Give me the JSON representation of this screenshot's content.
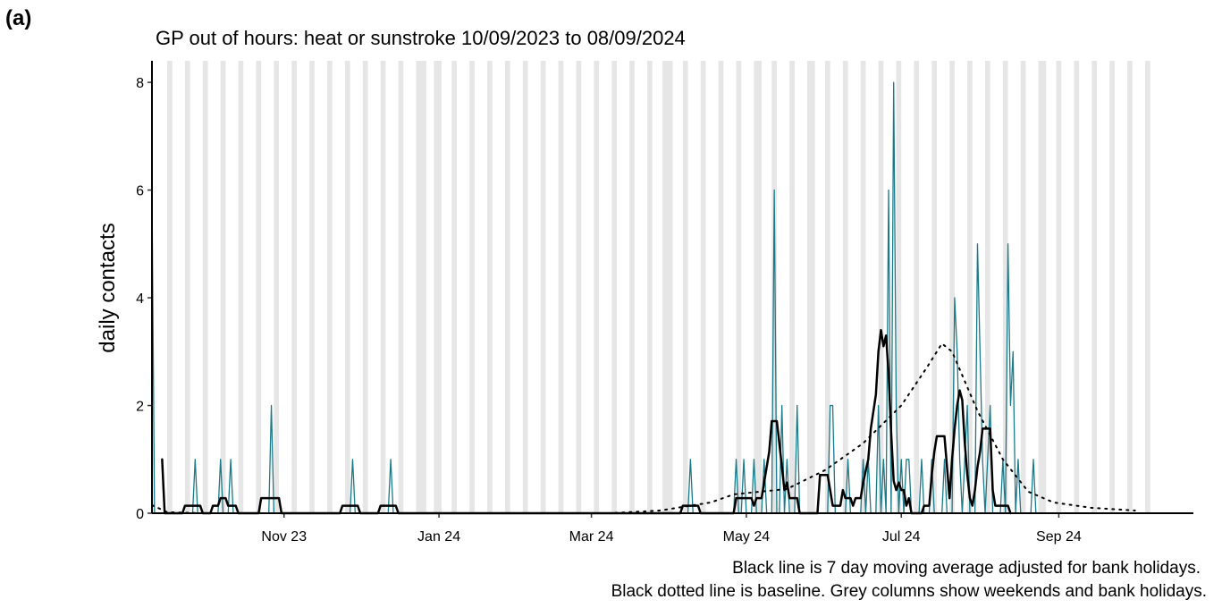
{
  "chart_data": {
    "type": "line",
    "panel_label": "(a)",
    "title": "GP out of hours: heat or sunstroke 10/09/2023 to 08/09/2024",
    "y_label": "daily contacts",
    "notes": [
      "Black line is 7 day moving average adjusted for bank holidays.",
      "Black dotted line is baseline. Grey columns show weekends and bank holidays."
    ],
    "xlim": [
      0,
      410
    ],
    "ylim": [
      0,
      8.4
    ],
    "yticks": [
      0,
      2,
      4,
      6,
      8
    ],
    "xticks": [
      {
        "value": 52,
        "label": "Nov 23"
      },
      {
        "value": 113,
        "label": "Jan 24"
      },
      {
        "value": 173,
        "label": "Mar 24"
      },
      {
        "value": 234,
        "label": "May 24"
      },
      {
        "value": 295,
        "label": "Jul 24"
      },
      {
        "value": 357,
        "label": "Sep 24"
      }
    ],
    "shade_color": "#e6e6e6",
    "shaded": [
      [
        6,
        8
      ],
      [
        13,
        15
      ],
      [
        20,
        22
      ],
      [
        27,
        29
      ],
      [
        34,
        36
      ],
      [
        41,
        43
      ],
      [
        48,
        50
      ],
      [
        55,
        57
      ],
      [
        62,
        64
      ],
      [
        69,
        71
      ],
      [
        76,
        78
      ],
      [
        83,
        85
      ],
      [
        90,
        92
      ],
      [
        97,
        99
      ],
      [
        104,
        108
      ],
      [
        111,
        114
      ],
      [
        118,
        120
      ],
      [
        125,
        127
      ],
      [
        132,
        134
      ],
      [
        139,
        141
      ],
      [
        146,
        148
      ],
      [
        153,
        155
      ],
      [
        160,
        162
      ],
      [
        167,
        169
      ],
      [
        174,
        176
      ],
      [
        181,
        183
      ],
      [
        188,
        190
      ],
      [
        195,
        197
      ],
      [
        201,
        205
      ],
      [
        209,
        211
      ],
      [
        216,
        218
      ],
      [
        223,
        225
      ],
      [
        230,
        232
      ],
      [
        237,
        240
      ],
      [
        244,
        246
      ],
      [
        251,
        253
      ],
      [
        258,
        261
      ],
      [
        265,
        267
      ],
      [
        272,
        274
      ],
      [
        279,
        281
      ],
      [
        286,
        288
      ],
      [
        293,
        295
      ],
      [
        300,
        302
      ],
      [
        307,
        309
      ],
      [
        314,
        316
      ],
      [
        321,
        323
      ],
      [
        328,
        330
      ],
      [
        335,
        337
      ],
      [
        342,
        344
      ],
      [
        349,
        352
      ],
      [
        356,
        358
      ],
      [
        363,
        365
      ],
      [
        370,
        372
      ],
      [
        377,
        379
      ],
      [
        384,
        386
      ],
      [
        391,
        393
      ]
    ],
    "series": [
      {
        "color": "#1b7a8a",
        "width": 1.3,
        "dash": "none",
        "x": [
          0,
          1,
          16,
          17,
          18,
          26,
          27,
          28,
          30,
          31,
          32,
          46,
          47,
          48,
          78,
          79,
          80,
          93,
          94,
          95,
          211,
          212,
          213,
          229,
          230,
          231,
          232,
          233,
          234,
          236,
          237,
          238,
          240,
          241,
          242,
          244,
          245,
          246,
          247,
          248,
          249,
          250,
          251,
          253,
          254,
          255,
          266,
          267,
          268,
          269,
          273,
          274,
          275,
          279,
          280,
          281,
          282,
          283,
          285,
          286,
          287,
          288,
          289,
          290,
          291,
          292,
          293,
          294,
          295,
          296,
          297,
          298,
          299,
          302,
          303,
          304,
          306,
          307,
          308,
          311,
          312,
          313,
          315,
          316,
          317,
          318,
          319,
          320,
          321,
          322,
          324,
          325,
          326,
          327,
          328,
          329,
          330,
          331,
          334,
          335,
          336,
          337,
          338,
          339,
          340,
          341,
          342,
          346,
          347,
          348,
          364
        ],
        "values": [
          6,
          0,
          0,
          1,
          0,
          0,
          1,
          0,
          0,
          1,
          0,
          0,
          2,
          0,
          0,
          1,
          0,
          0,
          1,
          0,
          0,
          1,
          0,
          0,
          1,
          0,
          0,
          1,
          0,
          0,
          1,
          0,
          0,
          1,
          0,
          0,
          6,
          0,
          0,
          2,
          0,
          1,
          0,
          0,
          2,
          0,
          0,
          2,
          2,
          0,
          0,
          1,
          0,
          0,
          1,
          0,
          1,
          0,
          0,
          2,
          0,
          1,
          0,
          6,
          0,
          8,
          2,
          0,
          1,
          0,
          1,
          1,
          0,
          0,
          1,
          0,
          0,
          1,
          0,
          0,
          1,
          0,
          0,
          4,
          3,
          1,
          0,
          1,
          2,
          0,
          0,
          5,
          3,
          1,
          0,
          1,
          2,
          0,
          0,
          1,
          0,
          5,
          2,
          3,
          0,
          1,
          0,
          0,
          1,
          0,
          0
        ]
      },
      {
        "color": "#000000",
        "width": 2.5,
        "dash": "none",
        "x": [
          4,
          5,
          12,
          13,
          19,
          20,
          23,
          24,
          26,
          27,
          29,
          30,
          33,
          34,
          42,
          43,
          50,
          51,
          74,
          75,
          81,
          82,
          89,
          90,
          96,
          97,
          208,
          209,
          215,
          216,
          229,
          230,
          236,
          237,
          238,
          240,
          241,
          243,
          244,
          246,
          247,
          248,
          249,
          250,
          251,
          254,
          255,
          262,
          263,
          266,
          267,
          268,
          271,
          272,
          273,
          275,
          276,
          277,
          279,
          280,
          282,
          283,
          285,
          286,
          287,
          288,
          289,
          290,
          291,
          292,
          293,
          294,
          295,
          296,
          297,
          298,
          299,
          303,
          304,
          306,
          307,
          308,
          309,
          312,
          313,
          314,
          315,
          316,
          317,
          318,
          319,
          320,
          321,
          322,
          323,
          324,
          325,
          326,
          327,
          330,
          331,
          332,
          337,
          338
        ],
        "values": [
          1,
          0,
          0,
          0.14,
          0.14,
          0,
          0,
          0.14,
          0.14,
          0.28,
          0.28,
          0.14,
          0.14,
          0,
          0,
          0.28,
          0.28,
          0,
          0,
          0.14,
          0.14,
          0,
          0,
          0.14,
          0.14,
          0,
          0,
          0.14,
          0.14,
          0,
          0,
          0.28,
          0.28,
          0.14,
          0.28,
          0.28,
          0.57,
          1.14,
          1.71,
          1.71,
          1.3,
          0.86,
          0.43,
          0.57,
          0.28,
          0.28,
          0,
          0,
          0.71,
          0.71,
          0.43,
          0.14,
          0.14,
          0.43,
          0.28,
          0.28,
          0.14,
          0.28,
          0.28,
          0.57,
          1,
          1.57,
          2.2,
          3,
          3.4,
          3.1,
          3.3,
          2.6,
          1.5,
          0.6,
          0.43,
          0.57,
          0.43,
          0.43,
          0.14,
          0.28,
          0,
          0,
          0.14,
          0.14,
          0.71,
          1.14,
          1.43,
          1.43,
          0.86,
          0.28,
          1,
          1.57,
          2,
          2.28,
          2.1,
          1.3,
          0.71,
          0.28,
          0.14,
          0.43,
          0.86,
          1.14,
          1.57,
          1.57,
          0.43,
          0.14,
          0.14,
          0
        ]
      },
      {
        "color": "#000000",
        "width": 2,
        "dash": "2 6",
        "x": [
          0,
          6,
          20,
          180,
          200,
          220,
          229,
          250,
          265,
          280,
          295,
          305,
          311,
          315,
          325,
          335,
          345,
          355,
          370,
          387
        ],
        "values": [
          0.15,
          0.02,
          0,
          0,
          0.05,
          0.2,
          0.35,
          0.45,
          0.8,
          1.3,
          2,
          2.7,
          3.15,
          3,
          1.9,
          1,
          0.4,
          0.2,
          0.1,
          0.05
        ]
      }
    ]
  }
}
